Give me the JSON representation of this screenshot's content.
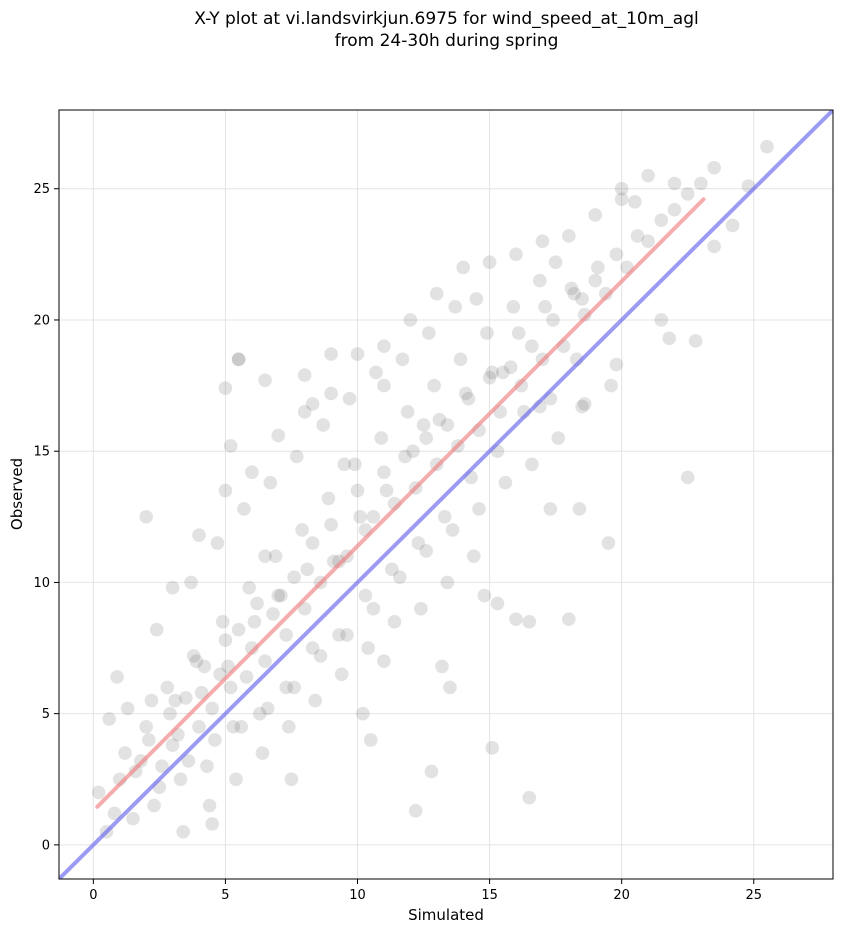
{
  "chart_data": {
    "type": "scatter",
    "title": "X-Y plot at vi.landsvirkjun.6975 for wind_speed_at_10m_agl\nfrom 24-30h during spring",
    "xlabel": "Simulated",
    "ylabel": "Observed",
    "xlim": [
      -1.3,
      28
    ],
    "ylim": [
      -1.3,
      28
    ],
    "xticks": [
      "0",
      "5",
      "10",
      "15",
      "20",
      "25"
    ],
    "yticks": [
      "0",
      "5",
      "10",
      "15",
      "20",
      "25"
    ],
    "grid": true,
    "point_color": "#555555",
    "identity_line": {
      "color": "#6666ee",
      "x": [
        -1.3,
        28
      ],
      "y": [
        -1.3,
        28
      ]
    },
    "fit_line": {
      "color": "#f08080",
      "x": [
        0.15,
        23.1
      ],
      "y": [
        1.45,
        24.6
      ]
    },
    "series": [
      {
        "type": "scatter",
        "x": [
          0.2,
          0.5,
          0.8,
          1.0,
          1.2,
          0.6,
          0.9,
          1.5,
          1.8,
          2.0,
          2.2,
          2.5,
          2.8,
          3.0,
          3.2,
          3.5,
          3.8,
          4.0,
          4.2,
          4.5,
          4.8,
          5.0,
          5.2,
          5.5,
          5.8,
          6.0,
          6.2,
          6.5,
          6.8,
          7.0,
          7.3,
          7.6,
          8.0,
          8.3,
          8.6,
          9.0,
          9.3,
          9.6,
          10.0,
          10.3,
          10.6,
          11.0,
          11.4,
          11.8,
          12.2,
          12.6,
          13.0,
          13.4,
          13.8,
          14.2,
          14.6,
          15.0,
          15.4,
          15.8,
          16.2,
          16.6,
          17.0,
          17.4,
          17.8,
          18.2,
          18.6,
          19.0,
          19.4,
          19.8,
          20.2,
          20.6,
          21.0,
          21.5,
          22.0,
          22.5,
          23.0,
          1.6,
          2.1,
          2.6,
          3.1,
          3.6,
          4.1,
          4.6,
          5.1,
          5.6,
          6.1,
          6.6,
          7.1,
          7.6,
          8.1,
          8.6,
          9.1,
          9.6,
          10.1,
          10.6,
          11.1,
          11.6,
          12.1,
          12.6,
          13.1,
          13.6,
          14.1,
          14.6,
          15.1,
          15.6,
          16.1,
          16.6,
          17.1,
          17.6,
          18.1,
          18.6,
          19.1,
          19.6,
          2.3,
          3.3,
          4.3,
          5.3,
          6.3,
          7.3,
          8.3,
          9.3,
          10.3,
          11.3,
          12.3,
          13.3,
          14.3,
          15.3,
          16.3,
          17.3,
          18.3,
          2.9,
          3.9,
          4.9,
          5.9,
          6.9,
          7.9,
          8.9,
          9.9,
          10.9,
          11.9,
          12.9,
          13.9,
          14.9,
          15.9,
          16.9,
          3.4,
          4.4,
          5.4,
          6.4,
          7.4,
          8.4,
          9.4,
          10.4,
          11.4,
          12.4,
          13.4,
          14.4,
          1.3,
          2.4,
          3.7,
          4.7,
          5.7,
          6.7,
          7.7,
          8.7,
          9.7,
          10.7,
          11.7,
          12.7,
          13.7,
          3.0,
          4.0,
          5.0,
          6.0,
          7.0,
          8.0,
          9.0,
          10.0,
          11.0,
          12.0,
          13.0,
          14.0,
          15.0,
          16.0,
          17.0,
          18.0,
          19.0,
          20.0,
          21.0,
          22.0,
          2.0,
          5.5,
          8.0,
          11.0,
          14.5,
          17.5,
          20.5,
          23.5,
          6.5,
          9.5,
          12.5,
          15.5,
          18.5,
          4.5,
          7.5,
          10.5,
          13.5,
          16.5,
          19.5,
          22.5,
          12.2,
          12.8,
          15.1,
          15.3,
          16.5,
          18.0,
          18.4,
          13.2,
          11.0,
          10.2,
          5.2,
          5.5,
          6.5,
          5.0,
          8.3,
          9.0,
          14.8,
          16.0,
          17.3,
          20.0,
          21.5,
          22.8,
          24.2,
          24.8,
          25.5,
          19.8,
          16.9,
          18.5,
          21.8,
          23.5
        ],
        "y": [
          2.0,
          0.5,
          1.2,
          2.5,
          3.5,
          4.8,
          6.4,
          1.0,
          3.2,
          4.5,
          5.5,
          2.2,
          6.0,
          3.8,
          4.2,
          5.6,
          7.2,
          4.5,
          6.8,
          5.2,
          6.5,
          7.8,
          6.0,
          8.2,
          6.4,
          7.5,
          9.2,
          7.0,
          8.8,
          9.5,
          8.0,
          10.2,
          9.0,
          11.5,
          10.0,
          12.2,
          10.8,
          11.0,
          13.5,
          12.0,
          12.5,
          14.2,
          13.0,
          14.8,
          13.6,
          15.5,
          14.5,
          16.0,
          15.2,
          17.0,
          15.8,
          17.8,
          16.5,
          18.2,
          17.5,
          19.0,
          18.5,
          20.0,
          19.0,
          21.0,
          20.2,
          21.5,
          21.0,
          22.5,
          22.0,
          23.2,
          23.0,
          23.8,
          24.2,
          24.8,
          25.2,
          2.8,
          4.0,
          3.0,
          5.5,
          3.2,
          5.8,
          4.0,
          6.8,
          4.5,
          8.5,
          5.2,
          9.5,
          6.0,
          10.5,
          7.2,
          10.8,
          8.0,
          12.5,
          9.0,
          13.5,
          10.2,
          15.0,
          11.2,
          16.2,
          12.0,
          17.2,
          12.8,
          18.0,
          13.8,
          19.5,
          14.5,
          20.5,
          15.5,
          21.2,
          16.8,
          22.0,
          17.5,
          1.5,
          2.5,
          3.0,
          4.5,
          5.0,
          6.0,
          7.5,
          8.0,
          9.5,
          10.5,
          11.5,
          12.5,
          14.0,
          15.0,
          16.5,
          17.0,
          18.5,
          5.0,
          7.0,
          8.5,
          9.8,
          11.0,
          12.0,
          13.2,
          14.5,
          15.5,
          16.5,
          17.5,
          18.5,
          19.5,
          20.5,
          21.5,
          0.5,
          1.5,
          2.5,
          3.5,
          4.5,
          5.5,
          6.5,
          7.5,
          8.5,
          9.0,
          10.0,
          11.0,
          5.2,
          8.2,
          10.0,
          11.5,
          12.8,
          13.8,
          14.8,
          16.0,
          17.0,
          18.0,
          18.5,
          19.5,
          20.5,
          9.8,
          11.8,
          13.5,
          14.2,
          15.6,
          16.5,
          17.2,
          18.7,
          19.0,
          20.0,
          21.0,
          22.0,
          22.2,
          22.5,
          23.0,
          23.2,
          24.0,
          25.0,
          25.5,
          25.2,
          12.5,
          18.5,
          17.9,
          17.5,
          20.8,
          22.2,
          24.5,
          25.8,
          11.0,
          14.5,
          16.0,
          18.0,
          20.8,
          0.8,
          2.5,
          4.0,
          6.0,
          8.5,
          11.5,
          14.0,
          1.3,
          2.8,
          3.7,
          9.2,
          1.8,
          8.6,
          12.8,
          6.8,
          7.0,
          5.0,
          15.2,
          18.5,
          17.7,
          17.4,
          16.8,
          18.7,
          9.5,
          8.6,
          12.8,
          24.6,
          20.0,
          19.2,
          23.6,
          25.1,
          26.6,
          18.3,
          16.7,
          16.7,
          19.3,
          22.8
        ]
      }
    ]
  }
}
